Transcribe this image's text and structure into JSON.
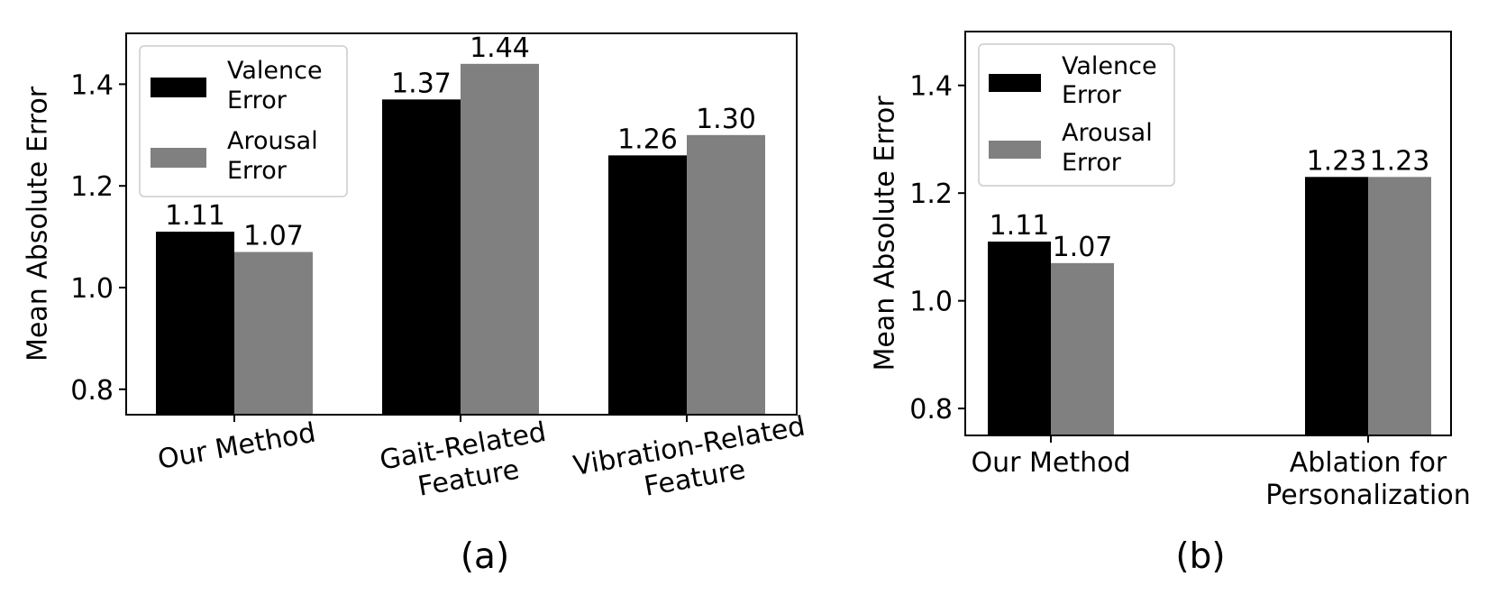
{
  "chart_data": [
    {
      "type": "bar",
      "caption": "(a)",
      "ylabel": "Mean Absolute Error",
      "ylim": [
        0.75,
        1.5
      ],
      "yticks": [
        0.8,
        1.0,
        1.2,
        1.4
      ],
      "ytick_labels": [
        "0.8",
        "1.0",
        "1.2",
        "1.4"
      ],
      "categories": [
        [
          "Our Method"
        ],
        [
          "Gait-Related",
          "Feature"
        ],
        [
          "Vibration-Related",
          "Feature"
        ]
      ],
      "series": [
        {
          "name": "Valence Error",
          "legend_lines": [
            "Valence",
            "Error"
          ],
          "color": "#000000",
          "values": [
            1.11,
            1.37,
            1.26
          ],
          "labels": [
            "1.11",
            "1.37",
            "1.26"
          ]
        },
        {
          "name": "Arousal Error",
          "legend_lines": [
            "Arousal",
            "Error"
          ],
          "color": "#808080",
          "values": [
            1.07,
            1.44,
            1.3
          ],
          "labels": [
            "1.07",
            "1.44",
            "1.30"
          ]
        }
      ],
      "legend": "top-left",
      "grid": false
    },
    {
      "type": "bar",
      "caption": "(b)",
      "ylabel": "Mean Absolute Error",
      "ylim": [
        0.75,
        1.5
      ],
      "yticks": [
        0.8,
        1.0,
        1.2,
        1.4
      ],
      "ytick_labels": [
        "0.8",
        "1.0",
        "1.2",
        "1.4"
      ],
      "categories": [
        [
          "Our Method"
        ],
        [
          "Ablation for",
          "Personalization"
        ]
      ],
      "series": [
        {
          "name": "Valence Error",
          "legend_lines": [
            "Valence",
            "Error"
          ],
          "color": "#000000",
          "values": [
            1.11,
            1.23
          ],
          "labels": [
            "1.11",
            "1.23"
          ]
        },
        {
          "name": "Arousal Error",
          "legend_lines": [
            "Arousal",
            "Error"
          ],
          "color": "#808080",
          "values": [
            1.07,
            1.23
          ],
          "labels": [
            "1.07",
            "1.23"
          ]
        }
      ],
      "legend": "top-left",
      "grid": false
    }
  ]
}
